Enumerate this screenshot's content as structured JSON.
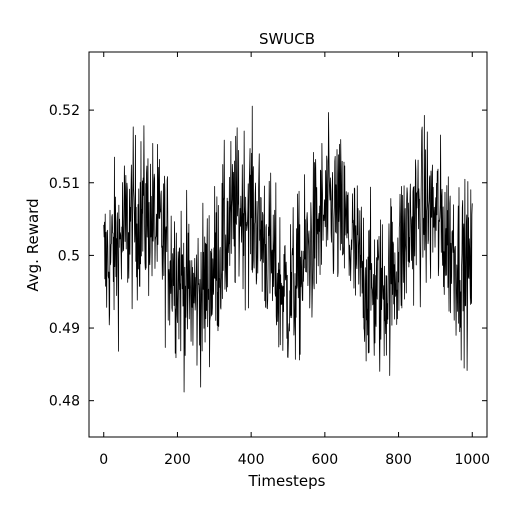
{
  "chart_data": {
    "type": "line",
    "title": "SWUCB",
    "xlabel": "Timesteps",
    "ylabel": "Avg. Reward",
    "xlim": [
      -40,
      1040
    ],
    "ylim": [
      0.475,
      0.528
    ],
    "xticks": [
      0,
      200,
      400,
      600,
      800,
      1000
    ],
    "xtick_labels": [
      "0",
      "200",
      "400",
      "600",
      "800",
      "1000"
    ],
    "yticks": [
      0.48,
      0.49,
      0.5,
      0.51,
      0.52
    ],
    "ytick_labels": [
      "0.48",
      "0.49",
      "0.5",
      "0.51",
      "0.52"
    ],
    "grid": false,
    "legend": "none",
    "line_color": "#000000",
    "series": [
      {
        "x": [
          0,
          25,
          50,
          75,
          100,
          125,
          150,
          175,
          200,
          225,
          250,
          275,
          300,
          325,
          350,
          375,
          400,
          425,
          450,
          475,
          500,
          525,
          550,
          575,
          600,
          625,
          650,
          675,
          700,
          725,
          750,
          775,
          800,
          825,
          850,
          875,
          900,
          925,
          950,
          975,
          1000
        ],
        "values": [
          0.4985,
          0.5003,
          0.5025,
          0.5046,
          0.5058,
          0.5053,
          0.5033,
          0.5007,
          0.4977,
          0.4951,
          0.4942,
          0.4954,
          0.4983,
          0.5018,
          0.5049,
          0.5067,
          0.5064,
          0.5037,
          0.4998,
          0.4959,
          0.4946,
          0.4962,
          0.4996,
          0.5032,
          0.5056,
          0.5061,
          0.5043,
          0.5011,
          0.4977,
          0.4952,
          0.4947,
          0.4964,
          0.4996,
          0.5031,
          0.5058,
          0.5065,
          0.5053,
          0.5031,
          0.5006,
          0.4986,
          0.4978
        ]
      }
    ]
  }
}
